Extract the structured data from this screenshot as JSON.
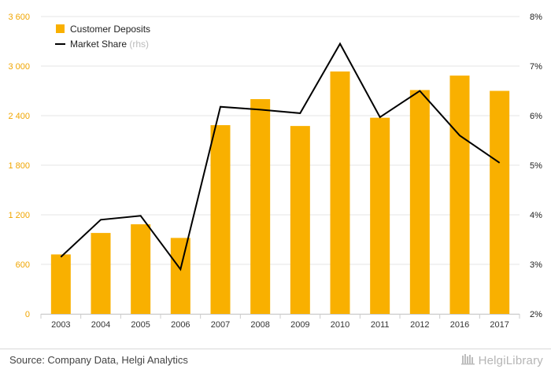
{
  "chart_data": {
    "type": "bar",
    "categories": [
      "2003",
      "2004",
      "2005",
      "2006",
      "2007",
      "2008",
      "2009",
      "2010",
      "2011",
      "2012",
      "2016",
      "2017"
    ],
    "series": [
      {
        "name": "Customer Deposits",
        "type": "bar",
        "axis": "left",
        "values": [
          720,
          980,
          1085,
          920,
          2285,
          2600,
          2275,
          2935,
          2375,
          2710,
          2885,
          2700
        ]
      },
      {
        "name": "Market Share",
        "type": "line",
        "axis": "right",
        "values": [
          3.15,
          3.9,
          3.98,
          2.9,
          6.18,
          6.12,
          6.05,
          7.45,
          5.97,
          6.5,
          5.6,
          5.05
        ]
      }
    ],
    "legend": [
      {
        "label": "Customer Deposits",
        "suffix": ""
      },
      {
        "label": "Market Share",
        "suffix": "(rhs)"
      }
    ],
    "y_left": {
      "ylim": [
        0,
        3600
      ],
      "ticks": [
        "0",
        "600",
        "1 200",
        "1 800",
        "2 400",
        "3 000",
        "3 600"
      ]
    },
    "y_right": {
      "ylim": [
        2,
        8
      ],
      "ticks": [
        "2%",
        "3%",
        "4%",
        "5%",
        "6%",
        "7%",
        "8%"
      ]
    },
    "grid": true,
    "legend_position": "top-left",
    "colors": {
      "bar": "#F9B000",
      "line": "#000000",
      "left_tick": "#F0A500",
      "grid": "#e6e6e6"
    }
  },
  "footer": {
    "source": "Source: Company Data, Helgi Analytics",
    "brand": "HelgiLibrary",
    "logo_icon": "library-icon"
  }
}
